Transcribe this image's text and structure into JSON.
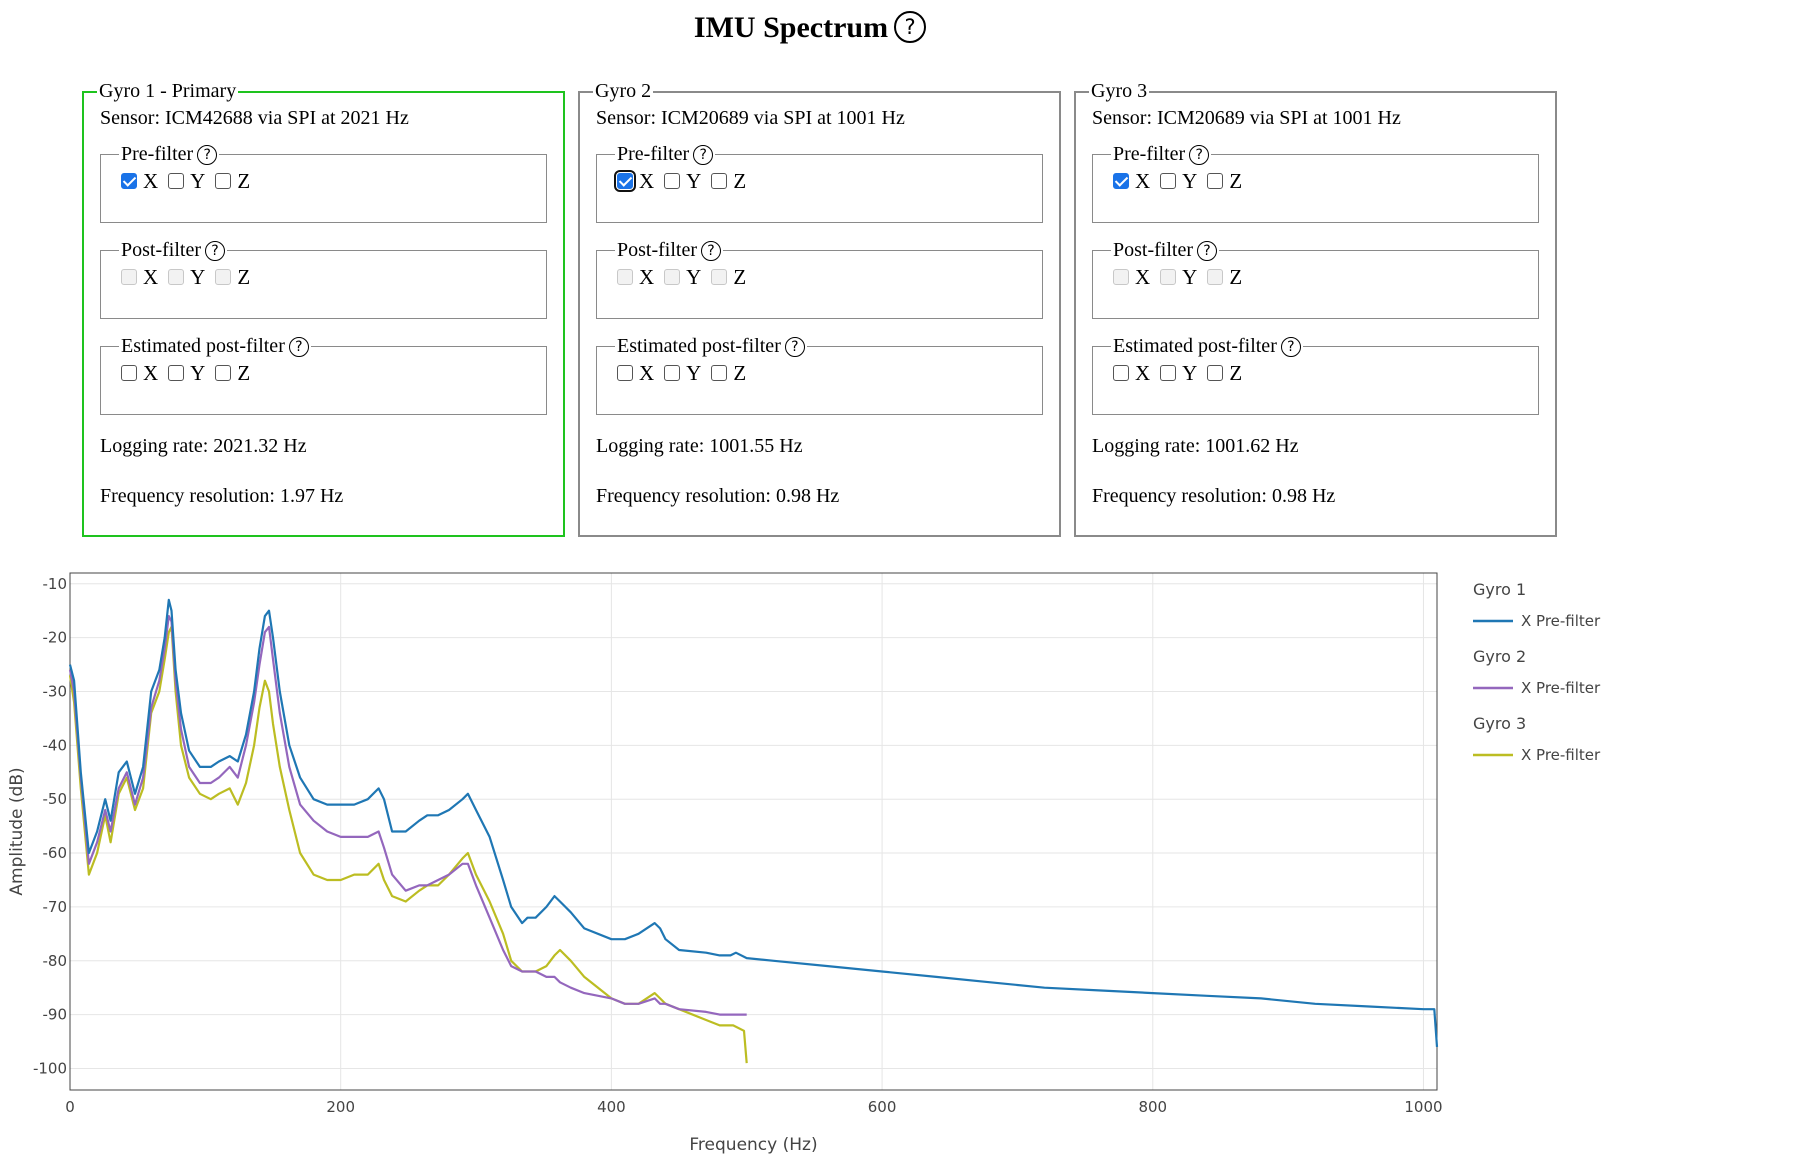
{
  "page": {
    "title": "IMU Spectrum",
    "help_glyph": "?"
  },
  "gyros": [
    {
      "legend": "Gyro 1 - Primary",
      "sensor": "Sensor: ICM42688 via SPI at 2021 Hz",
      "pre_filter": {
        "label": "Pre-filter",
        "x": true,
        "y": false,
        "z": false
      },
      "post_filter": {
        "label": "Post-filter",
        "x": false,
        "y": false,
        "z": false,
        "disabled": true
      },
      "est_post_filter": {
        "label": "Estimated post-filter",
        "x": false,
        "y": false,
        "z": false
      },
      "logging_rate": "Logging rate: 2021.32 Hz",
      "freq_resolution": "Frequency resolution: 1.97 Hz"
    },
    {
      "legend": "Gyro 2",
      "sensor": "Sensor: ICM20689 via SPI at 1001 Hz",
      "pre_filter": {
        "label": "Pre-filter",
        "x": true,
        "y": false,
        "z": false
      },
      "post_filter": {
        "label": "Post-filter",
        "x": false,
        "y": false,
        "z": false,
        "disabled": true
      },
      "est_post_filter": {
        "label": "Estimated post-filter",
        "x": false,
        "y": false,
        "z": false
      },
      "logging_rate": "Logging rate: 1001.55 Hz",
      "freq_resolution": "Frequency resolution: 0.98 Hz"
    },
    {
      "legend": "Gyro 3",
      "sensor": "Sensor: ICM20689 via SPI at 1001 Hz",
      "pre_filter": {
        "label": "Pre-filter",
        "x": true,
        "y": false,
        "z": false
      },
      "post_filter": {
        "label": "Post-filter",
        "x": false,
        "y": false,
        "z": false,
        "disabled": true
      },
      "est_post_filter": {
        "label": "Estimated post-filter",
        "x": false,
        "y": false,
        "z": false
      },
      "logging_rate": "Logging rate: 1001.62 Hz",
      "freq_resolution": "Frequency resolution: 0.98 Hz"
    }
  ],
  "axis_letters": [
    "X",
    "Y",
    "Z"
  ],
  "chart_data": {
    "type": "line",
    "xlabel": "Frequency (Hz)",
    "ylabel": "Amplitude (dB)",
    "xlim": [
      0,
      1010
    ],
    "ylim": [
      -104,
      -8
    ],
    "x_ticks": [
      0,
      200,
      400,
      600,
      800,
      1000
    ],
    "y_ticks": [
      -10,
      -20,
      -30,
      -40,
      -50,
      -60,
      -70,
      -80,
      -90,
      -100
    ],
    "grid": true,
    "legend_position": "right",
    "series": [
      {
        "group": "Gyro 1",
        "name": "X Pre-filter",
        "color": "#1f77b4",
        "x": [
          0,
          3,
          8,
          14,
          20,
          26,
          30,
          36,
          42,
          48,
          54,
          60,
          66,
          70,
          73,
          75,
          78,
          82,
          88,
          96,
          104,
          110,
          118,
          124,
          130,
          136,
          140,
          144,
          147,
          150,
          155,
          162,
          170,
          180,
          190,
          200,
          210,
          220,
          228,
          232,
          238,
          248,
          258,
          264,
          272,
          280,
          290,
          294,
          300,
          310,
          320,
          326,
          334,
          338,
          344,
          352,
          358,
          362,
          370,
          380,
          400,
          410,
          420,
          432,
          436,
          440,
          450,
          470,
          480,
          488,
          492,
          500,
          520,
          560,
          600,
          640,
          680,
          720,
          760,
          800,
          840,
          880,
          920,
          960,
          1000,
          1008,
          1010
        ],
        "y": [
          -25,
          -28,
          -45,
          -60,
          -56,
          -50,
          -54,
          -45,
          -43,
          -49,
          -44,
          -30,
          -26,
          -20,
          -13,
          -15,
          -26,
          -34,
          -41,
          -44,
          -44,
          -43,
          -42,
          -43,
          -38,
          -30,
          -22,
          -16,
          -15,
          -20,
          -30,
          -40,
          -46,
          -50,
          -51,
          -51,
          -51,
          -50,
          -48,
          -50,
          -56,
          -56,
          -54,
          -53,
          -53,
          -52,
          -50,
          -49,
          -52,
          -57,
          -65,
          -70,
          -73,
          -72,
          -72,
          -70,
          -68,
          -69,
          -71,
          -74,
          -76,
          -76,
          -75,
          -73,
          -74,
          -76,
          -78,
          -78.5,
          -79,
          -79,
          -78.5,
          -79.5,
          -80,
          -81,
          -82,
          -83,
          -84,
          -85,
          -85.5,
          -86,
          -86.5,
          -87,
          -88,
          -88.5,
          -89,
          -89,
          -96
        ]
      },
      {
        "group": "Gyro 2",
        "name": "X Pre-filter",
        "color": "#9467bd",
        "x": [
          0,
          3,
          8,
          14,
          20,
          26,
          30,
          36,
          42,
          48,
          54,
          60,
          66,
          70,
          73,
          75,
          78,
          82,
          88,
          96,
          104,
          110,
          118,
          124,
          130,
          136,
          140,
          144,
          147,
          150,
          155,
          162,
          170,
          180,
          190,
          200,
          210,
          220,
          228,
          232,
          238,
          248,
          258,
          264,
          272,
          280,
          290,
          294,
          300,
          310,
          320,
          326,
          334,
          338,
          344,
          352,
          358,
          362,
          370,
          380,
          400,
          410,
          420,
          432,
          436,
          440,
          450,
          470,
          480,
          490,
          498,
          500
        ],
        "y": [
          -26,
          -30,
          -46,
          -62,
          -58,
          -52,
          -56,
          -48,
          -45,
          -51,
          -46,
          -33,
          -28,
          -22,
          -16,
          -17,
          -28,
          -37,
          -44,
          -47,
          -47,
          -46,
          -44,
          -46,
          -40,
          -32,
          -25,
          -19,
          -18,
          -24,
          -34,
          -44,
          -51,
          -54,
          -56,
          -57,
          -57,
          -57,
          -56,
          -59,
          -64,
          -67,
          -66,
          -66,
          -65,
          -64,
          -62,
          -62,
          -66,
          -72,
          -78,
          -81,
          -82,
          -82,
          -82,
          -83,
          -83,
          -84,
          -85,
          -86,
          -87,
          -88,
          -88,
          -87,
          -88,
          -88,
          -89,
          -89.5,
          -90,
          -90,
          -90,
          -90
        ]
      },
      {
        "group": "Gyro 3",
        "name": "X Pre-filter",
        "color": "#bcbd22",
        "x": [
          0,
          3,
          8,
          14,
          20,
          26,
          30,
          36,
          42,
          48,
          54,
          60,
          66,
          70,
          73,
          75,
          78,
          82,
          88,
          96,
          104,
          110,
          118,
          124,
          130,
          136,
          140,
          144,
          147,
          150,
          155,
          162,
          170,
          180,
          190,
          200,
          210,
          220,
          228,
          232,
          238,
          248,
          258,
          264,
          272,
          280,
          290,
          294,
          300,
          310,
          320,
          326,
          334,
          338,
          344,
          352,
          358,
          362,
          370,
          380,
          400,
          410,
          420,
          432,
          436,
          440,
          450,
          470,
          480,
          490,
          498,
          500
        ],
        "y": [
          -27,
          -32,
          -48,
          -64,
          -60,
          -53,
          -58,
          -49,
          -46,
          -52,
          -48,
          -34,
          -30,
          -24,
          -19,
          -18,
          -30,
          -40,
          -46,
          -49,
          -50,
          -49,
          -48,
          -51,
          -47,
          -40,
          -33,
          -28,
          -30,
          -36,
          -44,
          -52,
          -60,
          -64,
          -65,
          -65,
          -64,
          -64,
          -62,
          -65,
          -68,
          -69,
          -67,
          -66,
          -66,
          -64,
          -61,
          -60,
          -64,
          -69,
          -75,
          -80,
          -82,
          -82,
          -82,
          -81,
          -79,
          -78,
          -80,
          -83,
          -87,
          -88,
          -88,
          -86,
          -87,
          -88,
          -89,
          -91,
          -92,
          -92,
          -93,
          -99
        ]
      }
    ]
  }
}
